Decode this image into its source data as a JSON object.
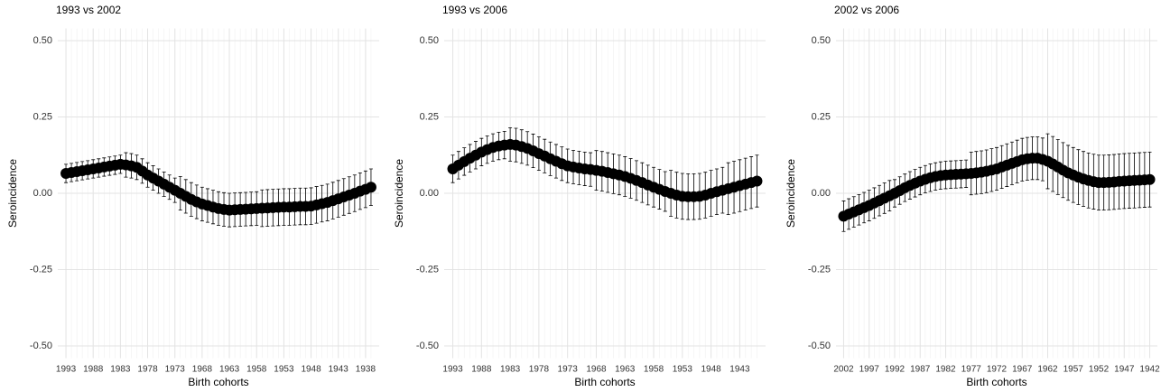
{
  "chart_data": [
    {
      "type": "errorbar",
      "title": "1993 vs 2002",
      "xlabel": "Birth cohorts",
      "ylabel": "Seroincidence",
      "color": "#000000",
      "grid": true,
      "x": [
        1993,
        1992,
        1991,
        1990,
        1989,
        1988,
        1987,
        1986,
        1985,
        1984,
        1983,
        1982,
        1981,
        1980,
        1979,
        1978,
        1977,
        1976,
        1975,
        1974,
        1973,
        1972,
        1971,
        1970,
        1969,
        1968,
        1967,
        1966,
        1965,
        1964,
        1963,
        1962,
        1961,
        1960,
        1959,
        1958,
        1957,
        1956,
        1955,
        1954,
        1953,
        1952,
        1951,
        1950,
        1949,
        1948,
        1947,
        1946,
        1945,
        1944,
        1943,
        1942,
        1941,
        1940,
        1939,
        1938,
        1937
      ],
      "values": [
        0.065,
        0.068,
        0.071,
        0.074,
        0.077,
        0.08,
        0.083,
        0.086,
        0.089,
        0.092,
        0.095,
        0.093,
        0.09,
        0.085,
        0.073,
        0.06,
        0.05,
        0.04,
        0.03,
        0.02,
        0.01,
        0.0,
        -0.01,
        -0.02,
        -0.028,
        -0.035,
        -0.04,
        -0.045,
        -0.05,
        -0.053,
        -0.055,
        -0.054,
        -0.053,
        -0.052,
        -0.051,
        -0.05,
        -0.049,
        -0.048,
        -0.047,
        -0.046,
        -0.045,
        -0.045,
        -0.044,
        -0.043,
        -0.043,
        -0.042,
        -0.038,
        -0.034,
        -0.03,
        -0.024,
        -0.018,
        -0.012,
        -0.006,
        0.0,
        0.007,
        0.013,
        0.02
      ],
      "errors": [
        0.03,
        0.03,
        0.03,
        0.03,
        0.03,
        0.03,
        0.03,
        0.03,
        0.03,
        0.03,
        0.03,
        0.04,
        0.04,
        0.04,
        0.04,
        0.04,
        0.04,
        0.04,
        0.04,
        0.04,
        0.04,
        0.055,
        0.055,
        0.055,
        0.055,
        0.055,
        0.055,
        0.055,
        0.055,
        0.055,
        0.055,
        0.055,
        0.055,
        0.055,
        0.055,
        0.055,
        0.06,
        0.06,
        0.06,
        0.06,
        0.06,
        0.06,
        0.06,
        0.06,
        0.06,
        0.06,
        0.06,
        0.06,
        0.06,
        0.06,
        0.06,
        0.06,
        0.06,
        0.06,
        0.06,
        0.06,
        0.06
      ],
      "xlim": [
        1994.5,
        1935.5
      ],
      "xticks": [
        1993,
        1988,
        1983,
        1978,
        1973,
        1968,
        1963,
        1958,
        1953,
        1948,
        1943,
        1938
      ],
      "ylim": [
        -0.54,
        0.54
      ],
      "yticks": [
        {
          "value": 0.5,
          "label": "0.50"
        },
        {
          "value": 0.25,
          "label": "0.25"
        },
        {
          "value": 0,
          "label": "0.00"
        },
        {
          "value": -0.25,
          "label": "-0.25"
        },
        {
          "value": -0.5,
          "label": "-0.50"
        }
      ]
    },
    {
      "type": "errorbar",
      "title": "1993 vs 2006",
      "xlabel": "Birth cohorts",
      "ylabel": "Seroincidence",
      "color": "#000000",
      "grid": true,
      "x": [
        1993,
        1992,
        1991,
        1990,
        1989,
        1988,
        1987,
        1986,
        1985,
        1984,
        1983,
        1982,
        1981,
        1980,
        1979,
        1978,
        1977,
        1976,
        1975,
        1974,
        1973,
        1972,
        1971,
        1970,
        1969,
        1968,
        1967,
        1966,
        1965,
        1964,
        1963,
        1962,
        1961,
        1960,
        1959,
        1958,
        1957,
        1956,
        1955,
        1954,
        1953,
        1952,
        1951,
        1950,
        1949,
        1948,
        1947,
        1946,
        1945,
        1944,
        1943,
        1942,
        1941,
        1940
      ],
      "values": [
        0.08,
        0.092,
        0.104,
        0.115,
        0.125,
        0.135,
        0.143,
        0.15,
        0.155,
        0.158,
        0.16,
        0.158,
        0.153,
        0.147,
        0.139,
        0.13,
        0.122,
        0.113,
        0.105,
        0.097,
        0.09,
        0.086,
        0.083,
        0.08,
        0.078,
        0.075,
        0.072,
        0.068,
        0.064,
        0.06,
        0.055,
        0.049,
        0.042,
        0.035,
        0.027,
        0.02,
        0.013,
        0.006,
        0.0,
        -0.006,
        -0.01,
        -0.011,
        -0.011,
        -0.01,
        -0.006,
        0.0,
        0.005,
        0.01,
        0.015,
        0.02,
        0.025,
        0.03,
        0.035,
        0.04
      ],
      "errors": [
        0.045,
        0.045,
        0.045,
        0.045,
        0.045,
        0.045,
        0.045,
        0.045,
        0.045,
        0.045,
        0.055,
        0.055,
        0.055,
        0.055,
        0.055,
        0.055,
        0.055,
        0.055,
        0.055,
        0.055,
        0.055,
        0.055,
        0.055,
        0.055,
        0.055,
        0.065,
        0.065,
        0.065,
        0.065,
        0.065,
        0.065,
        0.065,
        0.065,
        0.065,
        0.065,
        0.065,
        0.065,
        0.065,
        0.075,
        0.075,
        0.075,
        0.075,
        0.075,
        0.075,
        0.075,
        0.075,
        0.075,
        0.075,
        0.085,
        0.085,
        0.085,
        0.085,
        0.085,
        0.085
      ],
      "xlim": [
        1994.5,
        1938.5
      ],
      "xticks": [
        1993,
        1988,
        1983,
        1978,
        1973,
        1968,
        1963,
        1958,
        1953,
        1948,
        1943
      ],
      "ylim": [
        -0.54,
        0.54
      ],
      "yticks": [
        {
          "value": 0.5,
          "label": "0.50"
        },
        {
          "value": 0.25,
          "label": "0.25"
        },
        {
          "value": 0,
          "label": "0.00"
        },
        {
          "value": -0.25,
          "label": "-0.25"
        },
        {
          "value": -0.5,
          "label": "-0.50"
        }
      ]
    },
    {
      "type": "errorbar",
      "title": "2002 vs 2006",
      "xlabel": "Birth cohorts",
      "ylabel": "Seroincidence",
      "color": "#000000",
      "grid": true,
      "x": [
        2002,
        2001,
        2000,
        1999,
        1998,
        1997,
        1996,
        1995,
        1994,
        1993,
        1992,
        1991,
        1990,
        1989,
        1988,
        1987,
        1986,
        1985,
        1984,
        1983,
        1982,
        1981,
        1980,
        1979,
        1978,
        1977,
        1976,
        1975,
        1974,
        1973,
        1972,
        1971,
        1970,
        1969,
        1968,
        1967,
        1966,
        1965,
        1964,
        1963,
        1962,
        1961,
        1960,
        1959,
        1958,
        1957,
        1956,
        1955,
        1954,
        1953,
        1952,
        1951,
        1950,
        1949,
        1948,
        1947,
        1946,
        1945,
        1944,
        1943,
        1942
      ],
      "values": [
        -0.075,
        -0.068,
        -0.061,
        -0.054,
        -0.047,
        -0.04,
        -0.032,
        -0.024,
        -0.016,
        -0.008,
        0.0,
        0.009,
        0.018,
        0.026,
        0.033,
        0.04,
        0.046,
        0.051,
        0.055,
        0.058,
        0.06,
        0.061,
        0.062,
        0.063,
        0.064,
        0.065,
        0.067,
        0.069,
        0.072,
        0.076,
        0.08,
        0.086,
        0.092,
        0.098,
        0.104,
        0.11,
        0.113,
        0.115,
        0.115,
        0.111,
        0.105,
        0.096,
        0.086,
        0.076,
        0.067,
        0.06,
        0.053,
        0.047,
        0.042,
        0.038,
        0.035,
        0.035,
        0.036,
        0.037,
        0.039,
        0.04,
        0.041,
        0.042,
        0.043,
        0.044,
        0.045
      ],
      "errors": [
        0.05,
        0.05,
        0.05,
        0.05,
        0.05,
        0.05,
        0.05,
        0.05,
        0.05,
        0.05,
        0.045,
        0.045,
        0.045,
        0.045,
        0.045,
        0.045,
        0.045,
        0.045,
        0.045,
        0.045,
        0.045,
        0.045,
        0.045,
        0.045,
        0.045,
        0.07,
        0.07,
        0.07,
        0.07,
        0.07,
        0.07,
        0.07,
        0.07,
        0.07,
        0.07,
        0.07,
        0.07,
        0.07,
        0.07,
        0.07,
        0.09,
        0.09,
        0.09,
        0.09,
        0.09,
        0.09,
        0.09,
        0.09,
        0.09,
        0.09,
        0.09,
        0.09,
        0.09,
        0.09,
        0.09,
        0.09,
        0.09,
        0.09,
        0.09,
        0.09,
        0.09
      ],
      "xlim": [
        2003.5,
        1940.5
      ],
      "xticks": [
        2002,
        1997,
        1992,
        1987,
        1982,
        1977,
        1972,
        1967,
        1962,
        1957,
        1952,
        1947,
        1942
      ],
      "ylim": [
        -0.54,
        0.54
      ],
      "yticks": [
        {
          "value": 0.5,
          "label": "0.50"
        },
        {
          "value": 0.25,
          "label": "0.25"
        },
        {
          "value": 0,
          "label": "0.00"
        },
        {
          "value": -0.25,
          "label": "-0.25"
        },
        {
          "value": -0.5,
          "label": "-0.50"
        }
      ]
    }
  ]
}
